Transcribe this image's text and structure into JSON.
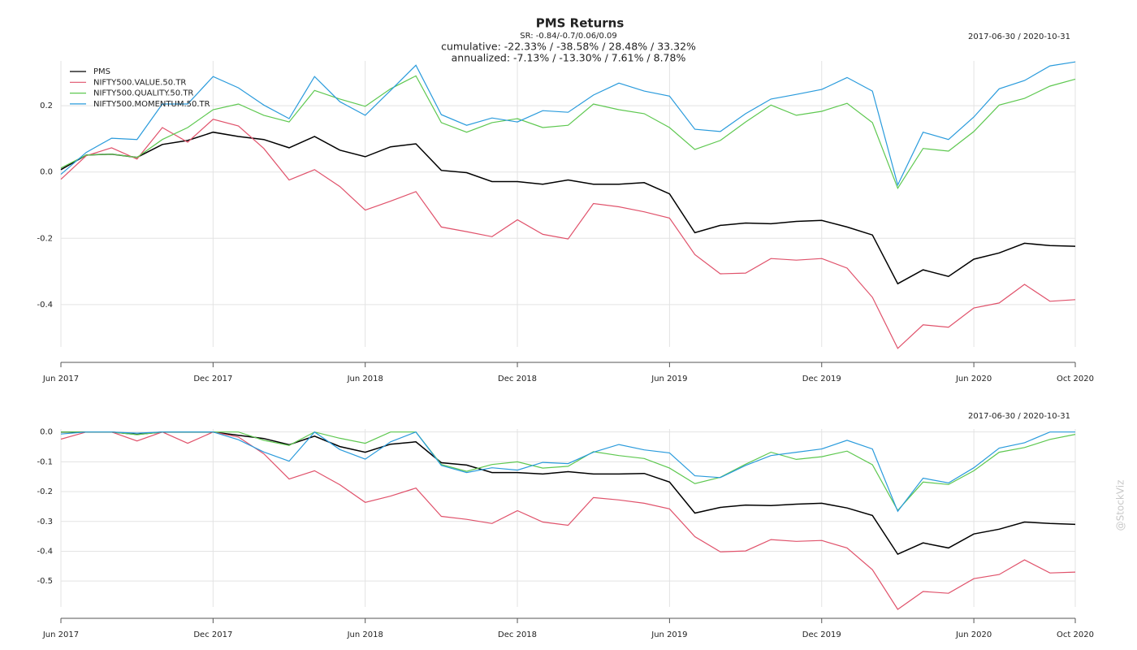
{
  "watermark": "@StockViz",
  "chart_data": [
    {
      "type": "line",
      "title": "PMS Returns",
      "subtitle": "SR: -0.84/-0.7/0.06/0.09",
      "annotations": [
        "cumulative: -22.33% / -38.58% / 28.48% / 33.32%",
        "annualized: -7.13% / -13.30% / 7.61% / 8.78%"
      ],
      "date_range": "2017-06-30 / 2020-10-31",
      "x": [
        "2017-06",
        "2017-07",
        "2017-08",
        "2017-09",
        "2017-10",
        "2017-11",
        "2017-12",
        "2018-01",
        "2018-02",
        "2018-03",
        "2018-04",
        "2018-05",
        "2018-06",
        "2018-07",
        "2018-08",
        "2018-09",
        "2018-10",
        "2018-11",
        "2018-12",
        "2019-01",
        "2019-02",
        "2019-03",
        "2019-04",
        "2019-05",
        "2019-06",
        "2019-07",
        "2019-08",
        "2019-09",
        "2019-10",
        "2019-11",
        "2019-12",
        "2020-01",
        "2020-02",
        "2020-03",
        "2020-04",
        "2020-05",
        "2020-06",
        "2020-07",
        "2020-08",
        "2020-09",
        "2020-10"
      ],
      "xlim": [
        "2017-06",
        "2020-10"
      ],
      "xticks": [
        {
          "value": "2017-06",
          "label": "Jun 2017"
        },
        {
          "value": "2017-12",
          "label": "Dec 2017"
        },
        {
          "value": "2018-06",
          "label": "Jun 2018"
        },
        {
          "value": "2018-12",
          "label": "Dec 2018"
        },
        {
          "value": "2019-06",
          "label": "Jun 2019"
        },
        {
          "value": "2019-12",
          "label": "Dec 2019"
        },
        {
          "value": "2020-06",
          "label": "Jun 2020"
        },
        {
          "value": "2020-10",
          "label": "Oct 2020"
        }
      ],
      "ylim": [
        -0.535,
        0.335
      ],
      "yticks": [
        -0.4,
        -0.2,
        {
          "value": 0,
          "label": "0.0"
        },
        0.2
      ],
      "grid": true,
      "legend": "upper left",
      "series": [
        {
          "name": "PMS",
          "color": "#000000",
          "values": [
            0.007,
            0.051,
            0.054,
            0.044,
            0.083,
            0.095,
            0.12,
            0.107,
            0.098,
            0.073,
            0.107,
            0.066,
            0.046,
            0.076,
            0.085,
            0.005,
            -0.002,
            -0.029,
            -0.029,
            -0.037,
            -0.024,
            -0.037,
            -0.037,
            -0.032,
            -0.066,
            -0.183,
            -0.161,
            -0.154,
            -0.156,
            -0.149,
            -0.146,
            -0.166,
            -0.19,
            -0.337,
            -0.295,
            -0.315,
            -0.263,
            -0.244,
            -0.215,
            -0.222,
            -0.224
          ]
        },
        {
          "name": "NIFTY500.VALUE.50.TR",
          "color": "#e0526b",
          "values": [
            -0.022,
            0.049,
            0.073,
            0.039,
            0.134,
            0.09,
            0.159,
            0.139,
            0.071,
            -0.024,
            0.007,
            -0.044,
            -0.115,
            -0.088,
            -0.059,
            -0.166,
            -0.18,
            -0.195,
            -0.144,
            -0.188,
            -0.202,
            -0.095,
            -0.105,
            -0.12,
            -0.139,
            -0.249,
            -0.307,
            -0.305,
            -0.261,
            -0.266,
            -0.261,
            -0.29,
            -0.378,
            -0.532,
            -0.461,
            -0.468,
            -0.41,
            -0.395,
            -0.339,
            -0.39,
            -0.385
          ]
        },
        {
          "name": "NIFTY500.QUALITY.50.TR",
          "color": "#5ec850",
          "values": [
            0.012,
            0.051,
            0.054,
            0.044,
            0.098,
            0.134,
            0.188,
            0.205,
            0.171,
            0.151,
            0.246,
            0.22,
            0.198,
            0.251,
            0.29,
            0.149,
            0.12,
            0.149,
            0.161,
            0.134,
            0.141,
            0.205,
            0.188,
            0.176,
            0.134,
            0.068,
            0.095,
            0.151,
            0.202,
            0.171,
            0.183,
            0.207,
            0.149,
            -0.049,
            0.071,
            0.063,
            0.122,
            0.202,
            0.222,
            0.259,
            0.28
          ]
        },
        {
          "name": "NIFTY500.MOMENTUM.50.TR",
          "color": "#2a9bdc",
          "values": [
            -0.007,
            0.059,
            0.102,
            0.098,
            0.205,
            0.205,
            0.288,
            0.254,
            0.202,
            0.161,
            0.288,
            0.212,
            0.171,
            0.246,
            0.322,
            0.173,
            0.141,
            0.163,
            0.151,
            0.185,
            0.18,
            0.232,
            0.268,
            0.244,
            0.229,
            0.129,
            0.122,
            0.176,
            0.22,
            0.234,
            0.249,
            0.285,
            0.244,
            -0.039,
            0.12,
            0.098,
            0.166,
            0.251,
            0.276,
            0.32,
            0.332
          ]
        }
      ]
    },
    {
      "type": "line",
      "date_range": "2017-06-30 / 2020-10-31",
      "x": [
        "2017-06",
        "2017-07",
        "2017-08",
        "2017-09",
        "2017-10",
        "2017-11",
        "2017-12",
        "2018-01",
        "2018-02",
        "2018-03",
        "2018-04",
        "2018-05",
        "2018-06",
        "2018-07",
        "2018-08",
        "2018-09",
        "2018-10",
        "2018-11",
        "2018-12",
        "2019-01",
        "2019-02",
        "2019-03",
        "2019-04",
        "2019-05",
        "2019-06",
        "2019-07",
        "2019-08",
        "2019-09",
        "2019-10",
        "2019-11",
        "2019-12",
        "2020-01",
        "2020-02",
        "2020-03",
        "2020-04",
        "2020-05",
        "2020-06",
        "2020-07",
        "2020-08",
        "2020-09",
        "2020-10"
      ],
      "xlim": [
        "2017-06",
        "2020-10"
      ],
      "xticks": [
        {
          "value": "2017-06",
          "label": "Jun 2017"
        },
        {
          "value": "2017-12",
          "label": "Dec 2017"
        },
        {
          "value": "2018-06",
          "label": "Jun 2018"
        },
        {
          "value": "2018-12",
          "label": "Dec 2018"
        },
        {
          "value": "2019-06",
          "label": "Jun 2019"
        },
        {
          "value": "2019-12",
          "label": "Dec 2019"
        },
        {
          "value": "2020-06",
          "label": "Jun 2020"
        },
        {
          "value": "2020-10",
          "label": "Oct 2020"
        }
      ],
      "ylim": [
        -0.595,
        0.01
      ],
      "yticks": [
        -0.5,
        -0.4,
        -0.3,
        -0.2,
        -0.1,
        {
          "value": 0,
          "label": "0.0"
        }
      ],
      "grid": true,
      "series": [
        {
          "color": "#000000",
          "values": [
            0,
            0,
            0,
            -0.008,
            0,
            0,
            0,
            -0.011,
            -0.022,
            -0.043,
            -0.014,
            -0.049,
            -0.068,
            -0.041,
            -0.033,
            -0.103,
            -0.111,
            -0.136,
            -0.136,
            -0.141,
            -0.133,
            -0.141,
            -0.141,
            -0.139,
            -0.168,
            -0.272,
            -0.253,
            -0.245,
            -0.247,
            -0.242,
            -0.239,
            -0.255,
            -0.28,
            -0.41,
            -0.372,
            -0.389,
            -0.342,
            -0.326,
            -0.302,
            -0.307,
            -0.31
          ]
        },
        {
          "color": "#e0526b",
          "values": [
            -0.024,
            0,
            0,
            -0.03,
            0,
            -0.038,
            0,
            -0.017,
            -0.073,
            -0.158,
            -0.13,
            -0.177,
            -0.236,
            -0.215,
            -0.188,
            -0.283,
            -0.293,
            -0.307,
            -0.264,
            -0.302,
            -0.313,
            -0.22,
            -0.228,
            -0.239,
            -0.258,
            -0.351,
            -0.402,
            -0.399,
            -0.361,
            -0.367,
            -0.364,
            -0.389,
            -0.462,
            -0.595,
            -0.535,
            -0.541,
            -0.492,
            -0.478,
            -0.429,
            -0.473,
            -0.47
          ]
        },
        {
          "color": "#5ec850",
          "values": [
            0,
            0,
            0,
            -0.009,
            0,
            0,
            0,
            0,
            -0.028,
            -0.045,
            0,
            -0.021,
            -0.038,
            0,
            0,
            -0.109,
            -0.132,
            -0.109,
            -0.1,
            -0.121,
            -0.115,
            -0.066,
            -0.079,
            -0.089,
            -0.121,
            -0.173,
            -0.152,
            -0.108,
            -0.068,
            -0.092,
            -0.083,
            -0.064,
            -0.11,
            -0.263,
            -0.168,
            -0.176,
            -0.13,
            -0.068,
            -0.052,
            -0.025,
            -0.008
          ]
        },
        {
          "color": "#2a9bdc",
          "values": [
            -0.007,
            0,
            0,
            -0.004,
            0,
            0,
            0,
            -0.026,
            -0.067,
            -0.098,
            0,
            -0.059,
            -0.091,
            -0.033,
            0,
            -0.112,
            -0.136,
            -0.12,
            -0.128,
            -0.102,
            -0.106,
            -0.068,
            -0.042,
            -0.06,
            -0.07,
            -0.147,
            -0.153,
            -0.112,
            -0.079,
            -0.068,
            -0.057,
            -0.028,
            -0.057,
            -0.266,
            -0.155,
            -0.171,
            -0.12,
            -0.054,
            -0.036,
            0,
            0
          ]
        }
      ]
    }
  ]
}
